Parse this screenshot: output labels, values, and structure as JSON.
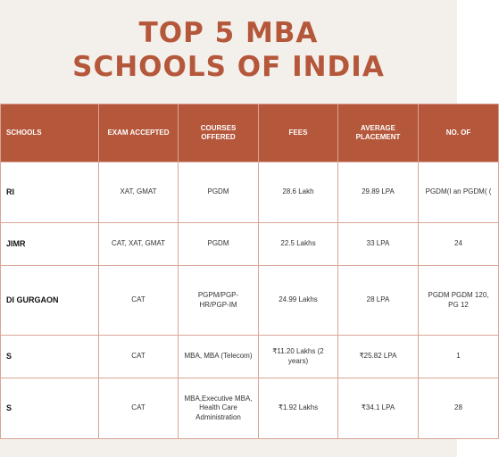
{
  "header": {
    "title_lines": [
      "TOP 5 MBA",
      "SCHOOLS OF INDIA"
    ]
  },
  "table": {
    "columns": [
      "SCHOOLS",
      "EXAM ACCEPTED",
      "COURSES OFFERED",
      "FEES",
      "AVERAGE PLACEMENT",
      "NO. OF"
    ],
    "rows": [
      [
        "RI",
        "XAT, GMAT",
        "PGDM",
        "28.6 Lakh",
        "29.89 LPA",
        "PGDM(I an PGDM( ("
      ],
      [
        "JIMR",
        "CAT, XAT, GMAT",
        "PGDM",
        "22.5 Lakhs",
        "33 LPA",
        "24"
      ],
      [
        "DI GURGAON",
        "CAT",
        "PGPM/PGP-HR/PGP-IM",
        "24.99 Lakhs",
        "28 LPA",
        "PGDM PGDM 120, PG 12"
      ],
      [
        "S",
        "CAT",
        "MBA, MBA (Telecom)",
        "₹11.20 Lakhs (2 years)",
        "₹25.82 LPA",
        "1"
      ],
      [
        "S",
        "CAT",
        "MBA,Executive MBA, Health Care Administration",
        "₹1.92 Lakhs",
        "₹34.1 LPA",
        "28"
      ]
    ]
  }
}
